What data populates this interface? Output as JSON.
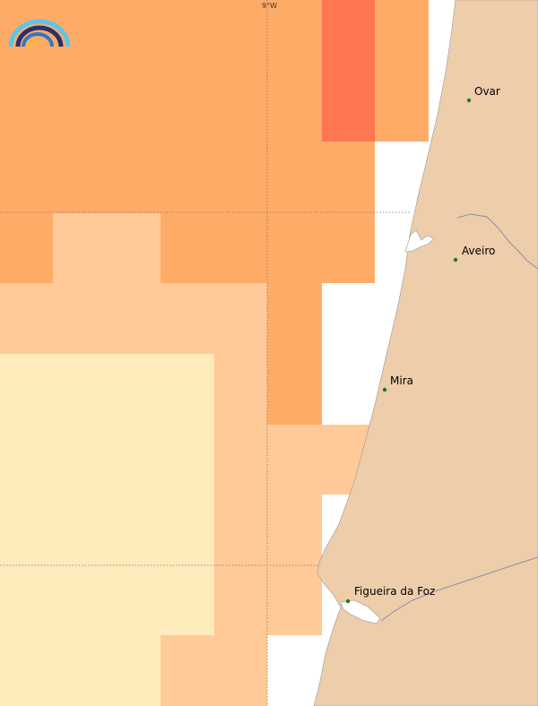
{
  "map": {
    "longitude_label": "9°W",
    "cities": [
      {
        "name": "Ovar",
        "key": "ovar"
      },
      {
        "name": "Aveiro",
        "key": "aveiro"
      },
      {
        "name": "Mira",
        "key": "mira"
      },
      {
        "name": "Figueira da Foz",
        "key": "figueira-da-foz"
      }
    ],
    "colors": {
      "land": "#edcdaa",
      "sea_background": "#ffffff",
      "level_red": "#ff7651",
      "level_orange": "#ffab68",
      "level_light_orange": "#ffca97",
      "level_pale_yellow": "#feebbc",
      "city_marker": "#1a7d1a",
      "graticule": "#777777",
      "rivers": "#8e8ea8"
    }
  }
}
